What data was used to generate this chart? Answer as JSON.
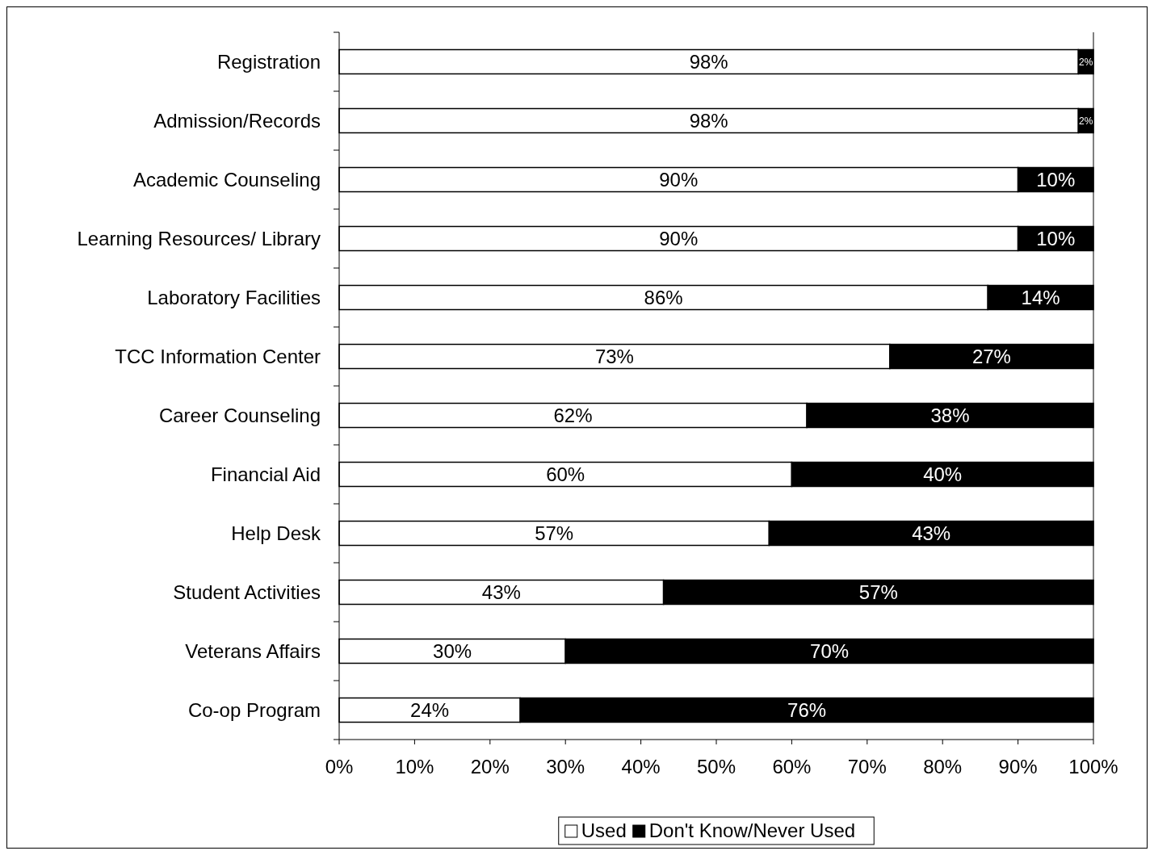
{
  "chart_data": {
    "type": "bar",
    "orientation": "horizontal",
    "stacked": true,
    "categories": [
      "Registration",
      "Admission/Records",
      "Academic Counseling",
      "Learning Resources/ Library",
      "Laboratory Facilities",
      "TCC Information Center",
      "Career Counseling",
      "Financial Aid",
      "Help Desk",
      "Student Activities",
      "Veterans Affairs",
      "Co-op Program"
    ],
    "series": [
      {
        "name": "Used",
        "color": "#ffffff",
        "values": [
          98,
          98,
          90,
          90,
          86,
          73,
          62,
          60,
          57,
          43,
          30,
          24
        ],
        "value_labels": [
          "98%",
          "98%",
          "90%",
          "90%",
          "86%",
          "73%",
          "62%",
          "60%",
          "57%",
          "43%",
          "30%",
          "24%"
        ]
      },
      {
        "name": "Don't Know/Never Used",
        "color": "#000000",
        "values": [
          2,
          2,
          10,
          10,
          14,
          27,
          38,
          40,
          43,
          57,
          70,
          76
        ],
        "value_labels": [
          "2%",
          "2%",
          "10%",
          "10%",
          "14%",
          "27%",
          "38%",
          "40%",
          "43%",
          "57%",
          "70%",
          "76%"
        ]
      }
    ],
    "xlim": [
      0,
      100
    ],
    "xticks": [
      {
        "value": 0,
        "label": "0%"
      },
      {
        "value": 10,
        "label": "10%"
      },
      {
        "value": 20,
        "label": "20%"
      },
      {
        "value": 30,
        "label": "30%"
      },
      {
        "value": 40,
        "label": "40%"
      },
      {
        "value": 50,
        "label": "50%"
      },
      {
        "value": 60,
        "label": "60%"
      },
      {
        "value": 70,
        "label": "70%"
      },
      {
        "value": 80,
        "label": "80%"
      },
      {
        "value": 90,
        "label": "90%"
      },
      {
        "value": 100,
        "label": "100%"
      }
    ],
    "grid": false,
    "legend": "bottom"
  }
}
